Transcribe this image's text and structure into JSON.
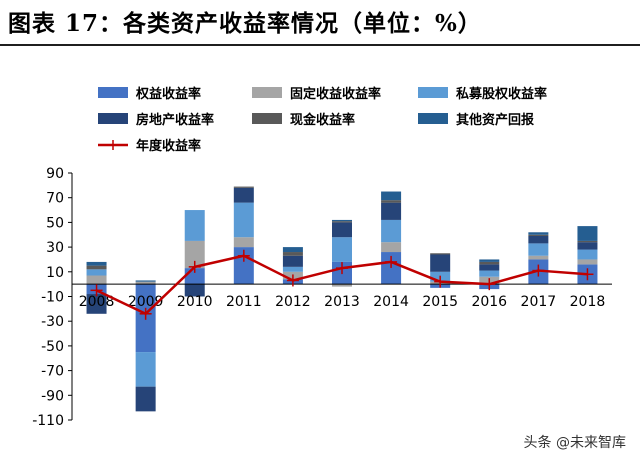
{
  "title": "图表 17：各类资产收益率情况（单位：%）",
  "watermark": "头条 @未来智库",
  "chart_data": {
    "type": "bar",
    "stacked": true,
    "categories": [
      "2008",
      "2009",
      "2010",
      "2011",
      "2012",
      "2013",
      "2014",
      "2015",
      "2016",
      "2017",
      "2018"
    ],
    "ylim": [
      -110,
      90
    ],
    "yticks": [
      90,
      70,
      50,
      30,
      10,
      -10,
      -30,
      -50,
      -70,
      -90,
      -110
    ],
    "grid": false,
    "legend_position": "top",
    "series": [
      {
        "name": "权益收益率",
        "color": "#4472C4",
        "values": [
          -8,
          -55,
          13,
          30,
          4,
          18,
          26,
          -3,
          -4,
          20,
          16
        ]
      },
      {
        "name": "固定收益收益率",
        "color": "#A5A5A5",
        "values": [
          7,
          2,
          22,
          8,
          6,
          -2,
          8,
          2,
          6,
          3,
          4
        ]
      },
      {
        "name": "私募股权收益率",
        "color": "#5B9BD5",
        "values": [
          5,
          -28,
          25,
          28,
          4,
          20,
          18,
          8,
          5,
          10,
          8
        ]
      },
      {
        "name": "房地产收益率",
        "color": "#264478",
        "values": [
          -16,
          -20,
          -10,
          12,
          9,
          12,
          14,
          14,
          5,
          6,
          6
        ]
      },
      {
        "name": "现金收益率",
        "color": "#595959",
        "values": [
          3,
          0,
          0,
          1,
          3,
          1,
          2,
          1,
          2,
          1,
          1
        ]
      },
      {
        "name": "其他资产回报",
        "color": "#255E91",
        "values": [
          3,
          1,
          0,
          0,
          4,
          1,
          7,
          0,
          2,
          2,
          12
        ]
      }
    ],
    "line_series": {
      "name": "年度收益率",
      "color": "#C00000",
      "marker": "+",
      "values": [
        -5,
        -24,
        14,
        23,
        3,
        13,
        18,
        2,
        0,
        11,
        8
      ]
    }
  }
}
